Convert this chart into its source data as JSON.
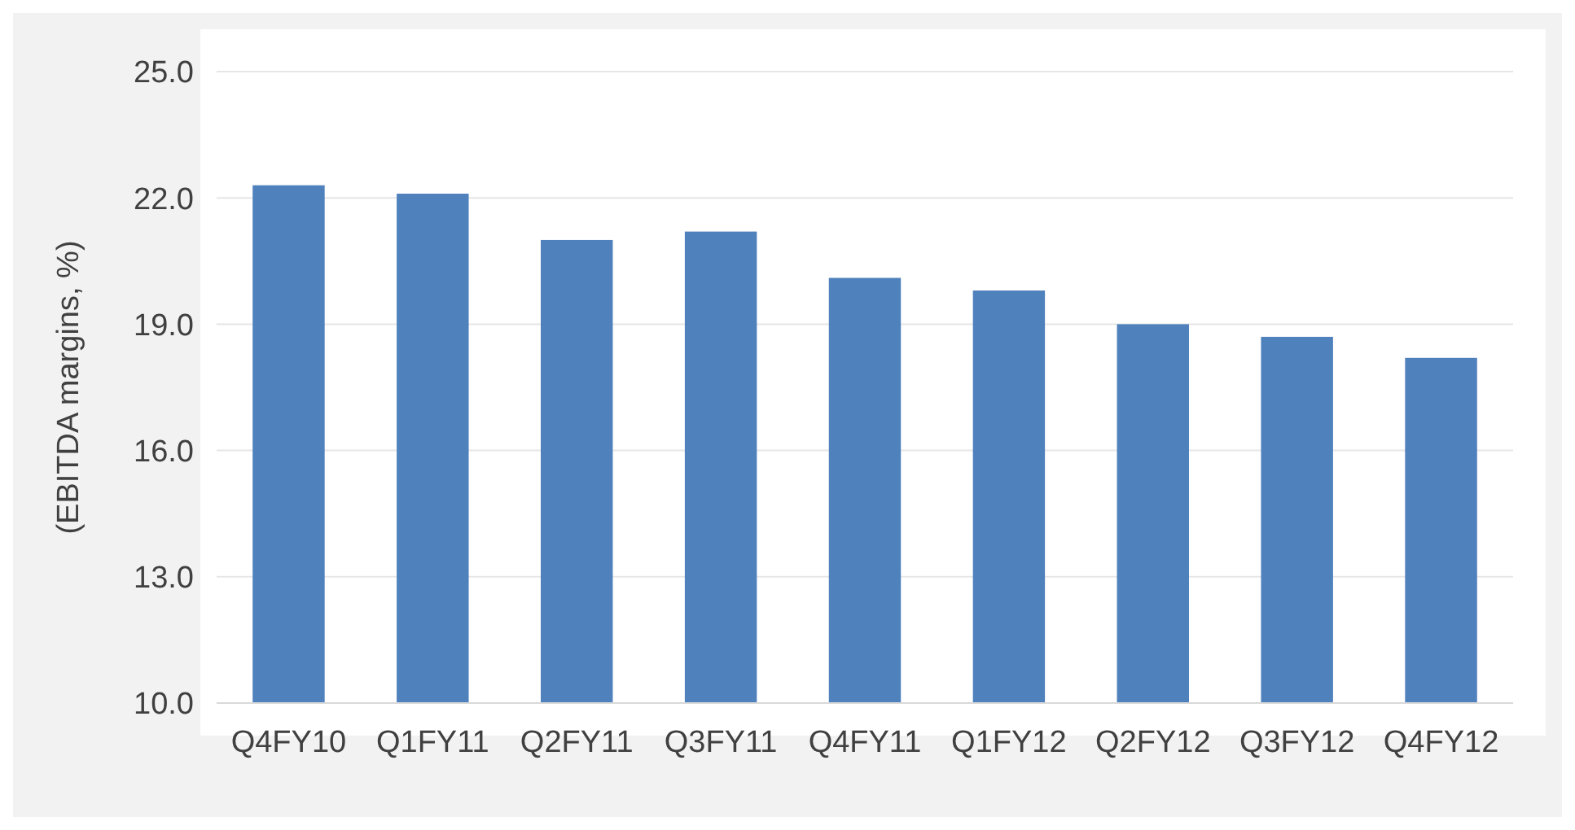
{
  "chart_data": {
    "type": "bar",
    "ylabel": "(EBITDA margins, %)",
    "categories": [
      "Q4FY10",
      "Q1FY11",
      "Q2FY11",
      "Q3FY11",
      "Q4FY11",
      "Q1FY12",
      "Q2FY12",
      "Q3FY12",
      "Q4FY12"
    ],
    "values": [
      22.3,
      22.1,
      21.0,
      21.2,
      20.1,
      19.8,
      19.0,
      18.7,
      18.2
    ],
    "color": "#4f81bd",
    "ylim": [
      10,
      25
    ],
    "yticks": [
      {
        "value": 10,
        "label": "10.0"
      },
      {
        "value": 13,
        "label": "13.0"
      },
      {
        "value": 16,
        "label": "16.0"
      },
      {
        "value": 19,
        "label": "19.0"
      },
      {
        "value": 22,
        "label": "22.0"
      },
      {
        "value": 25,
        "label": "25.0"
      }
    ],
    "grid": "y"
  }
}
